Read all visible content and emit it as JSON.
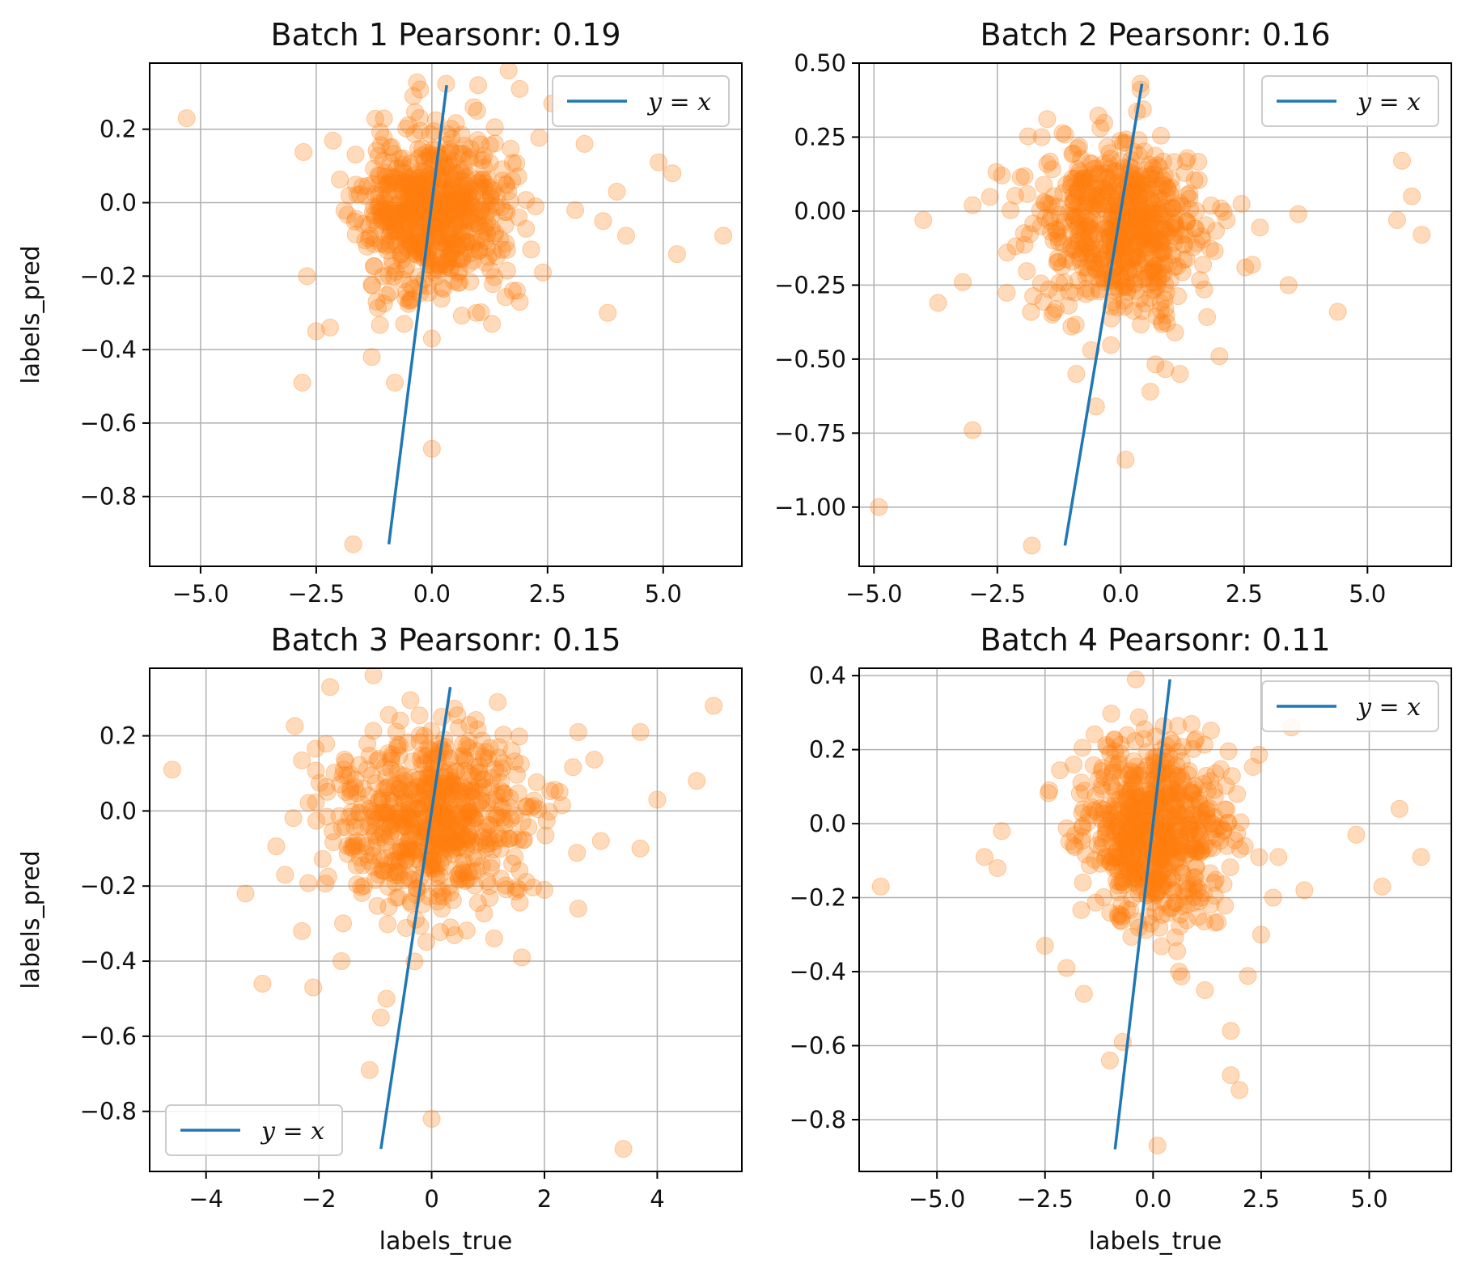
{
  "figure": {
    "background": "#ffffff",
    "grid": true,
    "colors": {
      "points": "#ff7f0e",
      "line": "#1f77b4",
      "grid": "#b0b0b0",
      "axes": "#000000"
    }
  },
  "chart_data": [
    {
      "type": "scatter",
      "title": "Batch 1 Pearsonr: 0.19",
      "xlabel": "",
      "ylabel": "labels_pred",
      "xlim": [
        -6.1,
        6.7
      ],
      "ylim": [
        -0.99,
        0.38
      ],
      "xticks": [
        -5.0,
        -2.5,
        0.0,
        2.5,
        5.0
      ],
      "xtick_labels": [
        "−5.0",
        "−2.5",
        "0.0",
        "2.5",
        "5.0"
      ],
      "yticks": [
        -0.8,
        -0.6,
        -0.4,
        -0.2,
        0.0,
        0.2
      ],
      "ytick_labels": [
        "−0.8",
        "−0.6",
        "−0.4",
        "−0.2",
        "0.0",
        "0.2"
      ],
      "legend": {
        "label": "y = x",
        "loc": "top-right"
      },
      "line": {
        "name": "y = x",
        "x": [
          -0.93,
          0.32
        ],
        "y": [
          -0.93,
          0.32
        ]
      },
      "cluster": {
        "n": 650,
        "x_sd": 0.8,
        "y_sd": 0.11,
        "x_mean": 0.0,
        "y_mean": -0.02,
        "seed": 11
      },
      "outliers": [
        [
          -5.3,
          0.23
        ],
        [
          -2.8,
          -0.49
        ],
        [
          -1.7,
          -0.93
        ],
        [
          -0.8,
          -0.49
        ],
        [
          0.0,
          -0.67
        ],
        [
          -1.3,
          -0.42
        ],
        [
          3.8,
          -0.3
        ],
        [
          5.3,
          -0.14
        ],
        [
          6.3,
          -0.09
        ],
        [
          4.9,
          0.11
        ],
        [
          5.2,
          0.08
        ],
        [
          3.3,
          0.16
        ],
        [
          2.6,
          0.27
        ],
        [
          1.0,
          0.32
        ],
        [
          4.0,
          0.03
        ],
        [
          4.2,
          -0.09
        ],
        [
          -2.7,
          -0.2
        ],
        [
          -2.2,
          -0.34
        ],
        [
          -2.5,
          -0.35
        ],
        [
          1.3,
          -0.33
        ],
        [
          1.9,
          -0.27
        ],
        [
          0.9,
          0.26
        ],
        [
          -0.4,
          0.29
        ],
        [
          3.7,
          -0.05
        ],
        [
          3.1,
          -0.02
        ],
        [
          2.4,
          -0.19
        ],
        [
          0.0,
          -0.37
        ],
        [
          -0.6,
          -0.33
        ]
      ]
    },
    {
      "type": "scatter",
      "title": "Batch 2 Pearsonr: 0.16",
      "xlabel": "",
      "ylabel": "",
      "xlim": [
        -5.3,
        6.7
      ],
      "ylim": [
        -1.2,
        0.5
      ],
      "xticks": [
        -5.0,
        -2.5,
        0.0,
        2.5,
        5.0
      ],
      "xtick_labels": [
        "−5.0",
        "−2.5",
        "0.0",
        "2.5",
        "5.0"
      ],
      "yticks": [
        -1.0,
        -0.75,
        -0.5,
        -0.25,
        0.0,
        0.25,
        0.5
      ],
      "ytick_labels": [
        "−1.00",
        "−0.75",
        "−0.50",
        "−0.25",
        "0.00",
        "0.25",
        "0.50"
      ],
      "legend": {
        "label": "y = x",
        "loc": "top-right"
      },
      "line": {
        "name": "y = x",
        "x": [
          -1.13,
          0.43
        ],
        "y": [
          -1.13,
          0.43
        ]
      },
      "cluster": {
        "n": 650,
        "x_sd": 0.85,
        "y_sd": 0.14,
        "x_mean": 0.0,
        "y_mean": -0.05,
        "seed": 22
      },
      "outliers": [
        [
          -4.9,
          -1.0
        ],
        [
          -3.0,
          -0.74
        ],
        [
          -1.8,
          -1.13
        ],
        [
          0.1,
          -0.84
        ],
        [
          0.6,
          -0.61
        ],
        [
          0.4,
          0.43
        ],
        [
          -3.7,
          -0.31
        ],
        [
          -3.2,
          -0.24
        ],
        [
          -3.0,
          0.02
        ],
        [
          -4.0,
          -0.03
        ],
        [
          -2.3,
          -0.14
        ],
        [
          -1.6,
          0.25
        ],
        [
          4.4,
          -0.34
        ],
        [
          5.6,
          -0.03
        ],
        [
          6.1,
          -0.08
        ],
        [
          5.9,
          0.05
        ],
        [
          5.7,
          0.17
        ],
        [
          3.4,
          -0.25
        ],
        [
          2.0,
          -0.49
        ],
        [
          1.1,
          -0.41
        ],
        [
          1.2,
          -0.55
        ],
        [
          -1.0,
          -0.39
        ],
        [
          -0.9,
          -0.55
        ],
        [
          0.9,
          -0.18
        ],
        [
          -0.5,
          -0.66
        ],
        [
          -0.6,
          -0.47
        ],
        [
          3.6,
          -0.01
        ],
        [
          -1.1,
          0.09
        ]
      ]
    },
    {
      "type": "scatter",
      "title": "Batch 3 Pearsonr: 0.15",
      "xlabel": "labels_true",
      "ylabel": "labels_pred",
      "xlim": [
        -5.0,
        5.5
      ],
      "ylim": [
        -0.96,
        0.38
      ],
      "xticks": [
        -4,
        -2,
        0,
        2,
        4
      ],
      "xtick_labels": [
        "−4",
        "−2",
        "0",
        "2",
        "4"
      ],
      "yticks": [
        -0.8,
        -0.6,
        -0.4,
        -0.2,
        0.0,
        0.2
      ],
      "ytick_labels": [
        "−0.8",
        "−0.6",
        "−0.4",
        "−0.2",
        "0.0",
        "0.2"
      ],
      "legend": {
        "label": "y = x",
        "loc": "bottom-left"
      },
      "line": {
        "name": "y = x",
        "x": [
          -0.9,
          0.33
        ],
        "y": [
          -0.9,
          0.33
        ]
      },
      "cluster": {
        "n": 650,
        "x_sd": 0.9,
        "y_sd": 0.12,
        "x_mean": 0.0,
        "y_mean": -0.02,
        "seed": 33
      },
      "outliers": [
        [
          -4.6,
          0.11
        ],
        [
          -3.3,
          -0.22
        ],
        [
          -3.0,
          -0.46
        ],
        [
          -2.1,
          -0.47
        ],
        [
          -1.8,
          0.33
        ],
        [
          -1.1,
          -0.69
        ],
        [
          -0.9,
          -0.55
        ],
        [
          0.0,
          -0.82
        ],
        [
          3.4,
          -0.9
        ],
        [
          5.0,
          0.28
        ],
        [
          4.7,
          0.08
        ],
        [
          4.0,
          0.03
        ],
        [
          3.7,
          0.21
        ],
        [
          3.7,
          -0.1
        ],
        [
          2.6,
          0.21
        ],
        [
          1.6,
          -0.39
        ],
        [
          -0.8,
          -0.5
        ],
        [
          -2.3,
          -0.32
        ],
        [
          -2.6,
          -0.17
        ],
        [
          2.6,
          -0.26
        ],
        [
          3.0,
          -0.08
        ],
        [
          1.0,
          0.14
        ],
        [
          2.0,
          -0.21
        ],
        [
          -1.6,
          -0.4
        ]
      ]
    },
    {
      "type": "scatter",
      "title": "Batch 4 Pearsonr: 0.11",
      "xlabel": "labels_true",
      "ylabel": "",
      "xlim": [
        -6.8,
        6.9
      ],
      "ylim": [
        -0.94,
        0.42
      ],
      "xticks": [
        -5.0,
        -2.5,
        0.0,
        2.5,
        5.0
      ],
      "xtick_labels": [
        "−5.0",
        "−2.5",
        "0.0",
        "2.5",
        "5.0"
      ],
      "yticks": [
        -0.8,
        -0.6,
        -0.4,
        -0.2,
        0.0,
        0.2,
        0.4
      ],
      "ytick_labels": [
        "−0.8",
        "−0.6",
        "−0.4",
        "−0.2",
        "0.0",
        "0.2",
        "0.4"
      ],
      "legend": {
        "label": "y = x",
        "loc": "top-right"
      },
      "line": {
        "name": "y = x",
        "x": [
          -0.88,
          0.39
        ],
        "y": [
          -0.88,
          0.39
        ]
      },
      "cluster": {
        "n": 650,
        "x_sd": 0.85,
        "y_sd": 0.12,
        "x_mean": 0.0,
        "y_mean": -0.03,
        "seed": 44
      },
      "outliers": [
        [
          -6.3,
          -0.17
        ],
        [
          -3.9,
          -0.09
        ],
        [
          -3.6,
          -0.12
        ],
        [
          -3.5,
          -0.02
        ],
        [
          -2.5,
          -0.33
        ],
        [
          -0.4,
          0.39
        ],
        [
          -0.7,
          -0.59
        ],
        [
          -1.0,
          -0.64
        ],
        [
          0.1,
          -0.87
        ],
        [
          1.8,
          -0.56
        ],
        [
          1.8,
          -0.68
        ],
        [
          2.0,
          -0.72
        ],
        [
          5.3,
          -0.17
        ],
        [
          5.7,
          0.04
        ],
        [
          6.2,
          -0.09
        ],
        [
          4.7,
          -0.03
        ],
        [
          3.2,
          0.26
        ],
        [
          3.5,
          -0.18
        ],
        [
          1.2,
          -0.45
        ],
        [
          2.5,
          -0.3
        ],
        [
          -2.4,
          0.09
        ],
        [
          -1.6,
          -0.46
        ],
        [
          -2.0,
          -0.39
        ],
        [
          0.6,
          -0.4
        ],
        [
          2.9,
          -0.09
        ]
      ]
    }
  ]
}
